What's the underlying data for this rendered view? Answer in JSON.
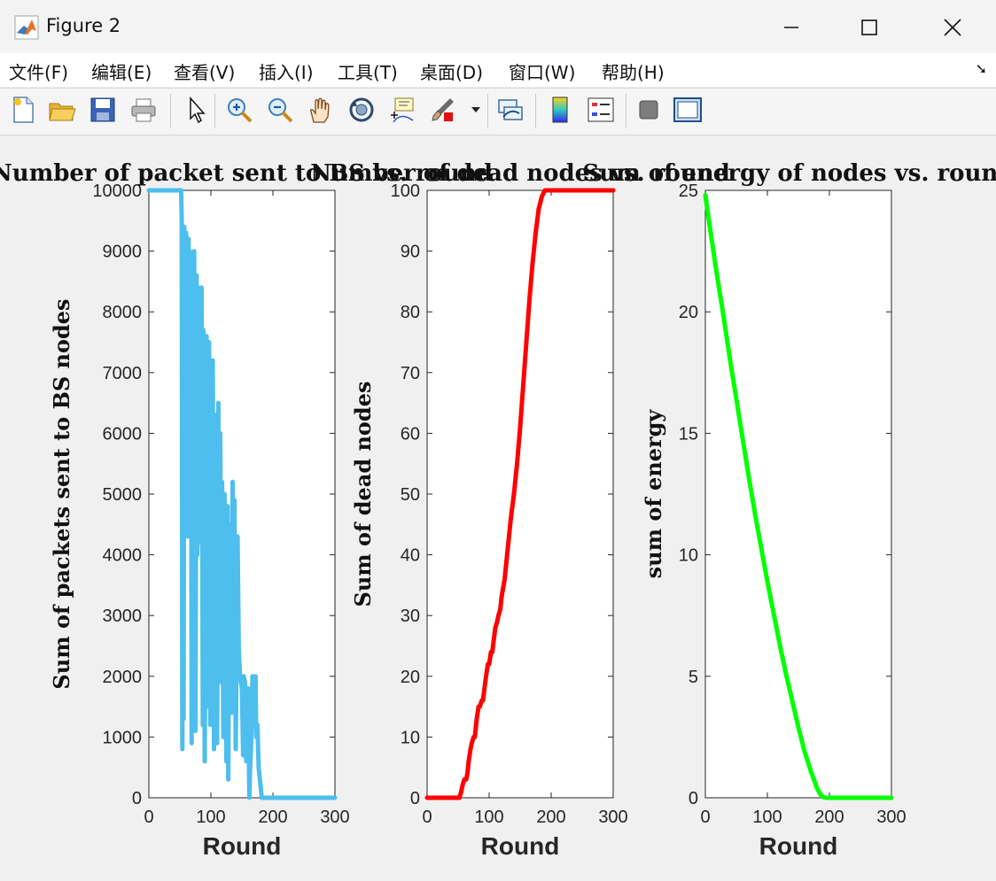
{
  "window": {
    "title": "Figure 2"
  },
  "menu": [
    "文件(F)",
    "编辑(E)",
    "查看(V)",
    "插入(I)",
    "工具(T)",
    "桌面(D)",
    "窗口(W)",
    "帮助(H)"
  ],
  "toolbar": {
    "icons": [
      "new-figure-icon",
      "open-file-icon",
      "save-icon",
      "print-icon",
      "pointer-icon",
      "zoom-in-icon",
      "zoom-out-icon",
      "pan-icon",
      "rotate-3d-icon",
      "data-cursor-icon",
      "brush-icon",
      "link-plot-icon",
      "colorbar-icon",
      "legend-icon",
      "hide-plot-tools-icon",
      "show-plot-tools-icon"
    ]
  },
  "colors": {
    "blue": "#4dbeee",
    "red": "#ff0000",
    "green": "#00ff00"
  },
  "chart_data": [
    {
      "type": "line",
      "title": "Number of packet sent to BS vs. round",
      "xlabel": "Round",
      "ylabel": "Sum of packets sent to BS nodes",
      "xlim": [
        0,
        300
      ],
      "ylim": [
        0,
        10000
      ],
      "xticks": [
        0,
        100,
        200,
        300
      ],
      "yticks": [
        0,
        1000,
        2000,
        3000,
        4000,
        5000,
        6000,
        7000,
        8000,
        9000,
        10000
      ],
      "color": "#4dbeee",
      "series": [
        {
          "x": [
            0,
            52,
            53,
            54,
            55,
            56,
            57,
            58,
            59,
            60,
            62,
            63,
            64,
            65,
            66,
            68,
            69,
            70,
            72,
            73,
            75,
            77,
            78,
            80,
            82,
            85,
            87,
            88,
            90,
            93,
            95,
            97,
            99,
            100,
            102,
            103,
            105,
            108,
            110,
            112,
            113,
            115,
            117,
            118,
            120,
            122,
            125,
            127,
            128,
            130,
            133,
            135,
            137,
            138,
            140,
            143,
            145,
            147,
            150,
            152,
            153,
            155,
            157,
            160,
            162,
            163,
            165,
            167,
            170,
            172,
            173,
            175,
            177,
            180,
            182,
            183,
            185,
            187,
            190,
            192,
            300
          ],
          "y": [
            10000,
            10000,
            9500,
            800,
            9000,
            1300,
            9400,
            8900,
            7200,
            9300,
            8600,
            4300,
            9200,
            7000,
            9000,
            7700,
            900,
            8900,
            5000,
            9000,
            1100,
            8600,
            4000,
            8400,
            4200,
            8400,
            1200,
            7700,
            600,
            7600,
            1500,
            7500,
            1200,
            7100,
            4200,
            7200,
            800,
            6300,
            900,
            6500,
            2200,
            6000,
            1900,
            5200,
            1000,
            5000,
            600,
            4800,
            300,
            4500,
            1400,
            5200,
            2000,
            4900,
            800,
            4300,
            2400,
            2000,
            1800,
            700,
            2000,
            1900,
            600,
            1800,
            0,
            400,
            900,
            2000,
            1400,
            2000,
            1000,
            1200,
            500,
            200,
            0,
            0,
            0,
            0,
            0,
            0,
            0
          ]
        }
      ]
    },
    {
      "type": "line",
      "title": "Number of dead nodes vs. round",
      "xlabel": "Round",
      "ylabel": "Sum of dead nodes",
      "xlim": [
        0,
        300
      ],
      "ylim": [
        0,
        100
      ],
      "xticks": [
        0,
        100,
        200,
        300
      ],
      "yticks": [
        0,
        10,
        20,
        30,
        40,
        50,
        60,
        70,
        80,
        90,
        100
      ],
      "color": "#ff0000",
      "series": [
        {
          "x": [
            0,
            52,
            55,
            57,
            60,
            63,
            65,
            67,
            70,
            72,
            75,
            77,
            80,
            83,
            85,
            88,
            90,
            95,
            98,
            100,
            103,
            105,
            110,
            113,
            115,
            118,
            120,
            125,
            128,
            130,
            135,
            140,
            145,
            150,
            155,
            160,
            165,
            170,
            175,
            180,
            185,
            190,
            195,
            200,
            300
          ],
          "y": [
            0,
            0,
            1,
            2,
            3,
            3,
            4,
            6,
            8,
            9,
            10,
            10,
            13,
            15,
            15,
            16,
            16,
            20,
            22,
            22,
            24,
            24,
            28,
            29,
            30,
            31,
            33,
            36,
            39,
            41,
            46,
            50,
            55,
            61,
            68,
            75,
            82,
            88,
            93,
            97,
            99,
            100,
            100,
            100,
            100
          ]
        }
      ]
    },
    {
      "type": "line",
      "title": "Sum of energy of nodes vs. round",
      "xlabel": "Round",
      "ylabel": "sum of energy",
      "xlim": [
        0,
        300
      ],
      "ylim": [
        0,
        25
      ],
      "xticks": [
        0,
        100,
        200,
        300
      ],
      "yticks": [
        0,
        5,
        10,
        15,
        20,
        25
      ],
      "color": "#00ff00",
      "series": [
        {
          "x": [
            0,
            10,
            20,
            30,
            40,
            50,
            60,
            70,
            80,
            90,
            100,
            110,
            120,
            130,
            140,
            150,
            160,
            170,
            180,
            185,
            190,
            195,
            200,
            300
          ],
          "y": [
            24.8,
            23.0,
            21.3,
            19.7,
            18.0,
            16.4,
            14.8,
            13.2,
            11.7,
            10.3,
            8.9,
            7.6,
            6.3,
            5.1,
            4.0,
            2.9,
            1.9,
            1.1,
            0.4,
            0.15,
            0.03,
            0,
            0,
            0
          ]
        }
      ]
    }
  ]
}
